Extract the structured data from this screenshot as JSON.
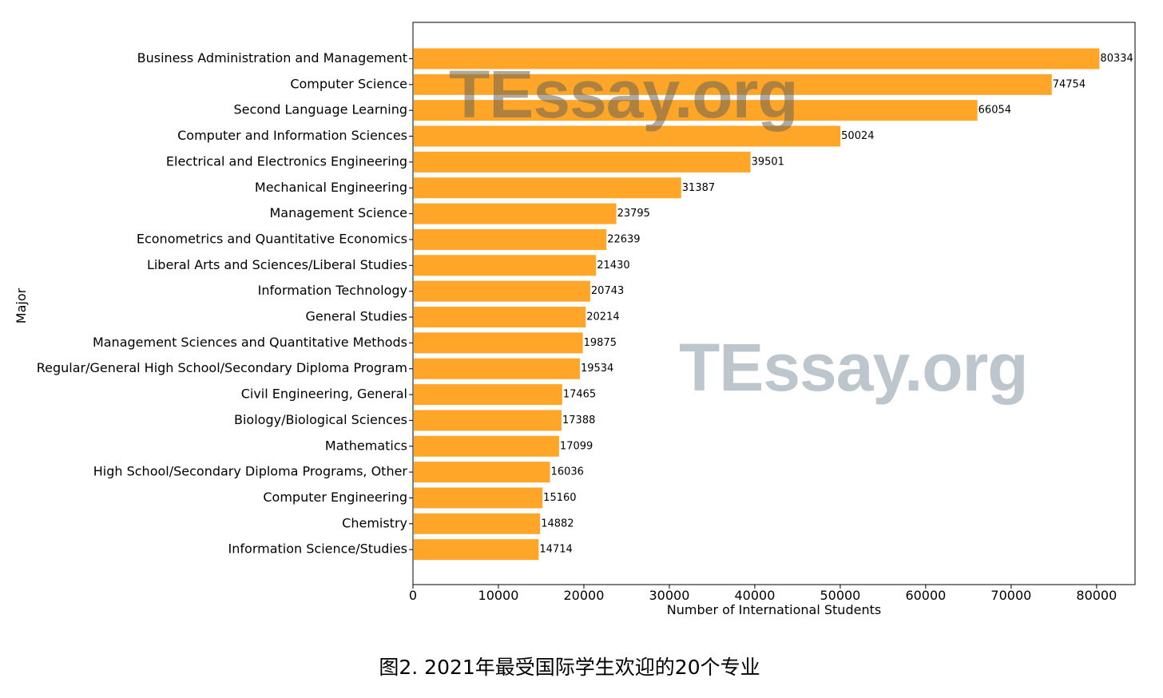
{
  "caption": "图2. 2021年最受国际学生欢迎的20个专业",
  "watermarks": [
    "TEssay.org",
    "TEssay.org"
  ],
  "colors": {
    "bar": "#ffa528",
    "axis": "#000000"
  },
  "chart_data": {
    "type": "bar",
    "orientation": "horizontal",
    "xlabel": "Number of International Students",
    "ylabel": "Major",
    "xlim": [
      0,
      84500
    ],
    "xticks": [
      0,
      10000,
      20000,
      30000,
      40000,
      50000,
      60000,
      70000,
      80000
    ],
    "grid": false,
    "categories": [
      "Business Administration and Management",
      "Computer Science",
      "Second Language Learning",
      "Computer and Information Sciences",
      "Electrical and Electronics Engineering",
      "Mechanical Engineering",
      "Management Science",
      "Econometrics and Quantitative Economics",
      "Liberal Arts and Sciences/Liberal Studies",
      "Information Technology",
      "General Studies",
      "Management Sciences and Quantitative Methods",
      "Regular/General High School/Secondary Diploma Program",
      "Civil Engineering, General",
      "Biology/Biological Sciences",
      "Mathematics",
      "High School/Secondary Diploma Programs, Other",
      "Computer Engineering",
      "Chemistry",
      "Information Science/Studies"
    ],
    "values": [
      80334,
      74754,
      66054,
      50024,
      39501,
      31387,
      23795,
      22639,
      21430,
      20743,
      20214,
      19875,
      19534,
      17465,
      17388,
      17099,
      16036,
      15160,
      14882,
      14714
    ]
  }
}
